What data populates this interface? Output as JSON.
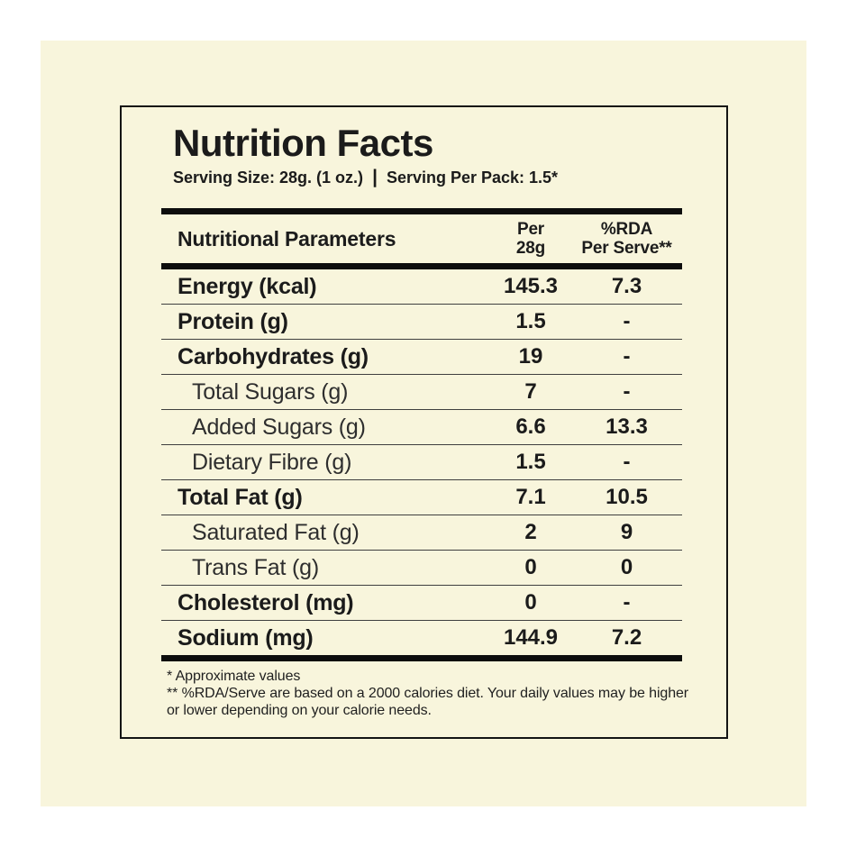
{
  "title": "Nutrition Facts",
  "serving": {
    "size_label": "Serving Size: 28g. (1 oz.)",
    "separator": "|",
    "pack_label": "Serving Per Pack: 1.5*"
  },
  "table": {
    "header": {
      "parameters_label": "Nutritional Parameters",
      "col_per": "Per\n28g",
      "col_rda": "%RDA\nPer Serve**"
    },
    "rows": [
      {
        "label": "Energy (kcal)",
        "per": "145.3",
        "rda": "7.3",
        "level": "main"
      },
      {
        "label": "Protein (g)",
        "per": "1.5",
        "rda": "-",
        "level": "main"
      },
      {
        "label": "Carbohydrates (g)",
        "per": "19",
        "rda": "-",
        "level": "main"
      },
      {
        "label": "Total Sugars (g)",
        "per": "7",
        "rda": "-",
        "level": "sub"
      },
      {
        "label": "Added Sugars (g)",
        "per": "6.6",
        "rda": "13.3",
        "level": "sub"
      },
      {
        "label": "Dietary Fibre (g)",
        "per": "1.5",
        "rda": "-",
        "level": "sub"
      },
      {
        "label": "Total Fat (g)",
        "per": "7.1",
        "rda": "10.5",
        "level": "main"
      },
      {
        "label": "Saturated Fat (g)",
        "per": "2",
        "rda": "9",
        "level": "sub"
      },
      {
        "label": "Trans Fat (g)",
        "per": "0",
        "rda": "0",
        "level": "sub"
      },
      {
        "label": "Cholesterol (mg)",
        "per": "0",
        "rda": "-",
        "level": "main"
      },
      {
        "label": "Sodium (mg)",
        "per": "144.9",
        "rda": "7.2",
        "level": "main"
      }
    ]
  },
  "footnotes": [
    "* Approximate values",
    "** %RDA/Serve are based on a 2000 calories diet. Your daily values may be higher or lower depending on your calorie needs."
  ],
  "colors": {
    "page_bg": "#ffffff",
    "card_bg": "#f8f5dc",
    "ink": "#1b1b1b",
    "thin_rule": "#3f3f3f",
    "thick_bar": "#0d0d0d"
  }
}
